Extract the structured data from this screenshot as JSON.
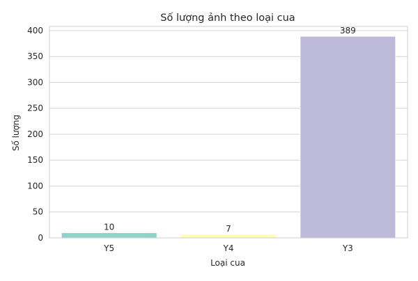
{
  "chart_data": {
    "type": "bar",
    "title": "Số lượng ảnh theo loại cua",
    "xlabel": "Loại cua",
    "ylabel": "Số lượng",
    "categories": [
      "Y5",
      "Y4",
      "Y3"
    ],
    "values": [
      10,
      7,
      389
    ],
    "data_labels": [
      "10",
      "7",
      "389"
    ],
    "colors": [
      "#8dd3c7",
      "#ffffb3",
      "#bebada"
    ],
    "ylim": [
      0,
      408
    ],
    "yticks": [
      0,
      50,
      100,
      150,
      200,
      250,
      300,
      350,
      400
    ],
    "grid": true,
    "legend": "none"
  }
}
